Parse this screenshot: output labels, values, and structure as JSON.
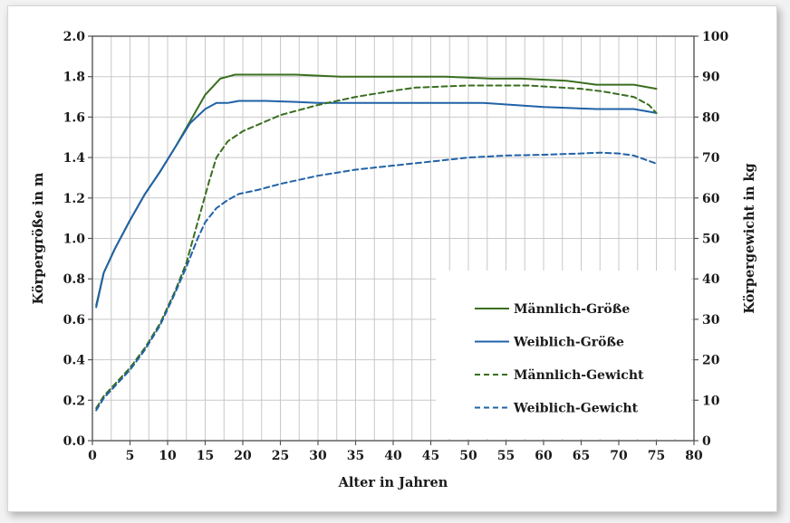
{
  "chart_data": {
    "type": "line",
    "xlabel": "Alter in Jahren",
    "ylabel_left": "Körpergröße in m",
    "ylabel_right": "Körpergewicht in kg",
    "xlim": [
      0,
      80
    ],
    "ylim_left": [
      0,
      2.0
    ],
    "ylim_right": [
      0,
      100
    ],
    "x_ticks": [
      "0",
      "5",
      "10",
      "15",
      "20",
      "25",
      "30",
      "35",
      "40",
      "45",
      "50",
      "55",
      "60",
      "65",
      "70",
      "75",
      "80"
    ],
    "y_left_ticks": [
      "0.0",
      "0.2",
      "0.4",
      "0.6",
      "0.8",
      "1.0",
      "1.2",
      "1.4",
      "1.6",
      "1.8",
      "2.0"
    ],
    "y_right_ticks": [
      "0",
      "10",
      "20",
      "30",
      "40",
      "50",
      "60",
      "70",
      "80",
      "90",
      "100"
    ],
    "grid": true,
    "legend_position": "bottom-right",
    "series": [
      {
        "name": "Männlich-Größe",
        "axis": "left",
        "color": "#3a6e1f",
        "dash": "solid",
        "points": [
          [
            0.5,
            0.67
          ],
          [
            1.5,
            0.83
          ],
          [
            3,
            0.95
          ],
          [
            5,
            1.09
          ],
          [
            7,
            1.22
          ],
          [
            9,
            1.33
          ],
          [
            11,
            1.45
          ],
          [
            13,
            1.58
          ],
          [
            15,
            1.71
          ],
          [
            16.5,
            1.77
          ],
          [
            17,
            1.79
          ],
          [
            19,
            1.81
          ],
          [
            22,
            1.81
          ],
          [
            27,
            1.81
          ],
          [
            30,
            1.805
          ],
          [
            33,
            1.8
          ],
          [
            40,
            1.8
          ],
          [
            47,
            1.8
          ],
          [
            53,
            1.79
          ],
          [
            57,
            1.79
          ],
          [
            63,
            1.78
          ],
          [
            67,
            1.76
          ],
          [
            72,
            1.76
          ],
          [
            75,
            1.74
          ]
        ]
      },
      {
        "name": "Weiblich-Größe",
        "axis": "left",
        "color": "#2062a7",
        "dash": "solid",
        "points": [
          [
            0.5,
            0.66
          ],
          [
            1.5,
            0.83
          ],
          [
            3,
            0.95
          ],
          [
            5,
            1.09
          ],
          [
            7,
            1.22
          ],
          [
            9,
            1.33
          ],
          [
            11,
            1.45
          ],
          [
            13,
            1.57
          ],
          [
            15,
            1.64
          ],
          [
            16.5,
            1.67
          ],
          [
            18,
            1.67
          ],
          [
            19.5,
            1.68
          ],
          [
            23,
            1.68
          ],
          [
            27,
            1.675
          ],
          [
            30,
            1.67
          ],
          [
            40,
            1.67
          ],
          [
            52,
            1.67
          ],
          [
            56,
            1.66
          ],
          [
            60,
            1.65
          ],
          [
            67,
            1.64
          ],
          [
            72,
            1.64
          ],
          [
            75,
            1.62
          ]
        ]
      },
      {
        "name": "Männlich-Gewicht",
        "axis": "right",
        "color": "#3a6e1f",
        "dash": "dashed",
        "points": [
          [
            0.5,
            8
          ],
          [
            1.5,
            11
          ],
          [
            3,
            14
          ],
          [
            5,
            18
          ],
          [
            7,
            23
          ],
          [
            9,
            29
          ],
          [
            11,
            37
          ],
          [
            12.5,
            44
          ],
          [
            14,
            54
          ],
          [
            15.5,
            64
          ],
          [
            16.5,
            70
          ],
          [
            18,
            74
          ],
          [
            20,
            76.5
          ],
          [
            25,
            80.5
          ],
          [
            30,
            83
          ],
          [
            35,
            85
          ],
          [
            40,
            86.5
          ],
          [
            43,
            87.3
          ],
          [
            50,
            87.8
          ],
          [
            58,
            87.8
          ],
          [
            65,
            87
          ],
          [
            68,
            86.3
          ],
          [
            72,
            85
          ],
          [
            74,
            83
          ],
          [
            75,
            81
          ]
        ]
      },
      {
        "name": "Weiblich-Gewicht",
        "axis": "right",
        "color": "#2062a7",
        "dash": "dashed",
        "points": [
          [
            0.5,
            7.5
          ],
          [
            1.5,
            10.5
          ],
          [
            3,
            13.5
          ],
          [
            5,
            17.5
          ],
          [
            7,
            22.5
          ],
          [
            9,
            28.5
          ],
          [
            11,
            36.5
          ],
          [
            12.5,
            43
          ],
          [
            14,
            50
          ],
          [
            15,
            54
          ],
          [
            16.5,
            57.5
          ],
          [
            18,
            59.5
          ],
          [
            19.5,
            61
          ],
          [
            22,
            62
          ],
          [
            25,
            63.5
          ],
          [
            30,
            65.5
          ],
          [
            35,
            67
          ],
          [
            40,
            68
          ],
          [
            45,
            69
          ],
          [
            50,
            70
          ],
          [
            55,
            70.5
          ],
          [
            60,
            70.7
          ],
          [
            65,
            71
          ],
          [
            67.5,
            71.2
          ],
          [
            70,
            71
          ],
          [
            72,
            70.5
          ],
          [
            75,
            68.5
          ]
        ]
      }
    ]
  }
}
